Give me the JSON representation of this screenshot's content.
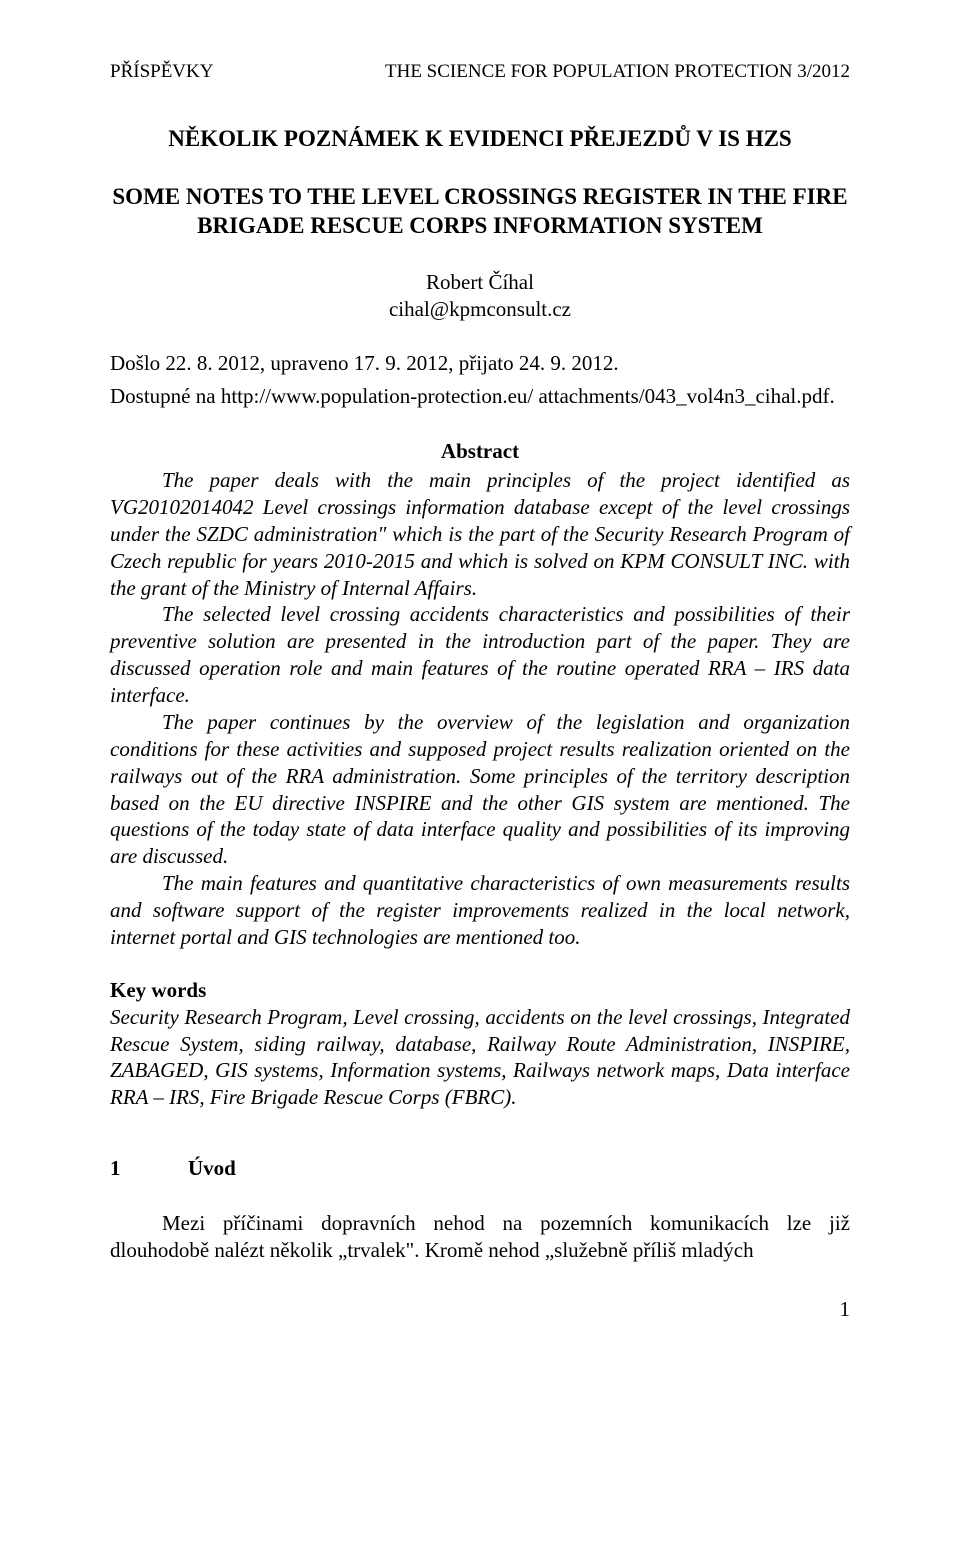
{
  "header": {
    "left": "PŘÍSPĚVKY",
    "right": "THE SCIENCE FOR POPULATION PROTECTION 3/2012"
  },
  "title_cz": "NĚKOLIK POZNÁMEK K EVIDENCI PŘEJEZDŮ V IS HZS",
  "title_en": "SOME NOTES TO THE LEVEL CROSSINGS REGISTER IN THE FIRE BRIGADE RESCUE CORPS INFORMATION SYSTEM",
  "author": {
    "name": "Robert Číhal",
    "email": "cihal@kpmconsult.cz"
  },
  "dates": "Došlo 22. 8. 2012, upraveno 17. 9. 2012, přijato 24. 9. 2012.",
  "availability": "Dostupné na http://www.population-protection.eu/ attachments/043_vol4n3_cihal.pdf.",
  "abstract": {
    "label": "Abstract",
    "paragraphs": [
      "The paper deals with the main principles of the project identified as VG20102014042 Level crossings information database except of the level crossings under the SZDC administration\" which is the part of the Security Research Program of Czech republic for years 2010-2015 and which is solved on KPM CONSULT INC. with the grant of the Ministry of Internal Affairs.",
      "The selected level crossing accidents characteristics and possibilities of their preventive solution are presented in the introduction part of the paper. They are discussed operation role and main features of the routine operated RRA – IRS data interface.",
      "The paper continues by the overview of the legislation and organization conditions for these activities and supposed project results realization oriented on the railways out of the RRA administration. Some principles of the territory description based on the EU directive INSPIRE and the other GIS system are mentioned. The questions of the today state of data interface quality and possibilities of its improving are discussed.",
      "The main features and quantitative characteristics of own measurements results and software support of the register improvements realized in the local network, internet portal and GIS technologies are mentioned too."
    ]
  },
  "keywords": {
    "label": "Key words",
    "text": "Security Research Program, Level crossing, accidents on the level crossings, Integrated Rescue System, siding railway, database, Railway Route Administration, INSPIRE, ZABAGED, GIS systems, Information systems, Railways network maps, Data interface RRA – IRS, Fire Brigade Rescue Corps (FBRC)."
  },
  "section": {
    "number": "1",
    "title": "Úvod",
    "paragraphs": [
      "Mezi příčinami dopravních nehod na pozemních komunikacích lze již dlouhodobě nalézt několik „trvalek\". Kromě nehod „služebně příliš mladých"
    ]
  },
  "page_number": "1"
}
